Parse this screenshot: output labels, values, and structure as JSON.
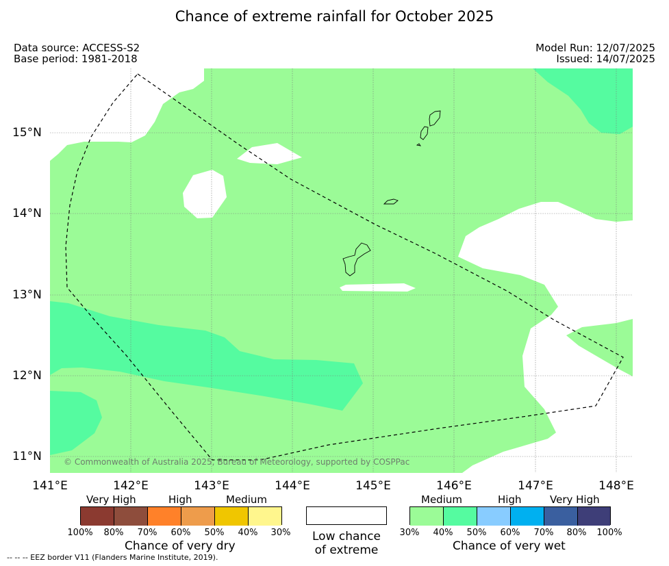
{
  "title": "Chance of extreme rainfall for October 2025",
  "meta": {
    "data_source": "Data source: ACCESS-S2",
    "base_period": "Base period: 1981-2018",
    "model_run": "Model Run: 12/07/2025",
    "issued": "Issued: 14/07/2025"
  },
  "map": {
    "lat_labels": [
      "15°N",
      "14°N",
      "13°N",
      "12°N",
      "11°N"
    ],
    "lon_labels": [
      "141°E",
      "142°E",
      "143°E",
      "144°E",
      "145°E",
      "146°E",
      "147°E",
      "148°E"
    ],
    "copyright": "© Commonwealth of Australia 2025, Bureau of Meteorology, supported by COSPPac",
    "colors": {
      "medium_wet": "#9bfb97",
      "high_wet": "#55fba0",
      "low_chance": "#ffffff"
    }
  },
  "legend": {
    "dry": {
      "heads": [
        "Very High",
        "High",
        "Medium"
      ],
      "percents": [
        "100%",
        "80%",
        "70%",
        "60%",
        "50%",
        "40%",
        "30%"
      ],
      "title": "Chance of very dry",
      "colors": [
        "#8b3a30",
        "#8e4d3c",
        "#ff8129",
        "#ee9c4b",
        "#f0c600",
        "#fff68d"
      ]
    },
    "low": {
      "line1": "Low chance",
      "line2": "of extreme"
    },
    "wet": {
      "heads": [
        "Medium",
        "High",
        "Very High"
      ],
      "percents": [
        "30%",
        "40%",
        "50%",
        "60%",
        "70%",
        "80%",
        "100%"
      ],
      "title": "Chance of very wet",
      "colors": [
        "#9bfb97",
        "#55fba0",
        "#88ccff",
        "#00b0f0",
        "#3a5f9f",
        "#3e3e78"
      ]
    }
  },
  "footer": "--  --  -- EEZ border V11 (Flanders Marine Institute, 2019)."
}
